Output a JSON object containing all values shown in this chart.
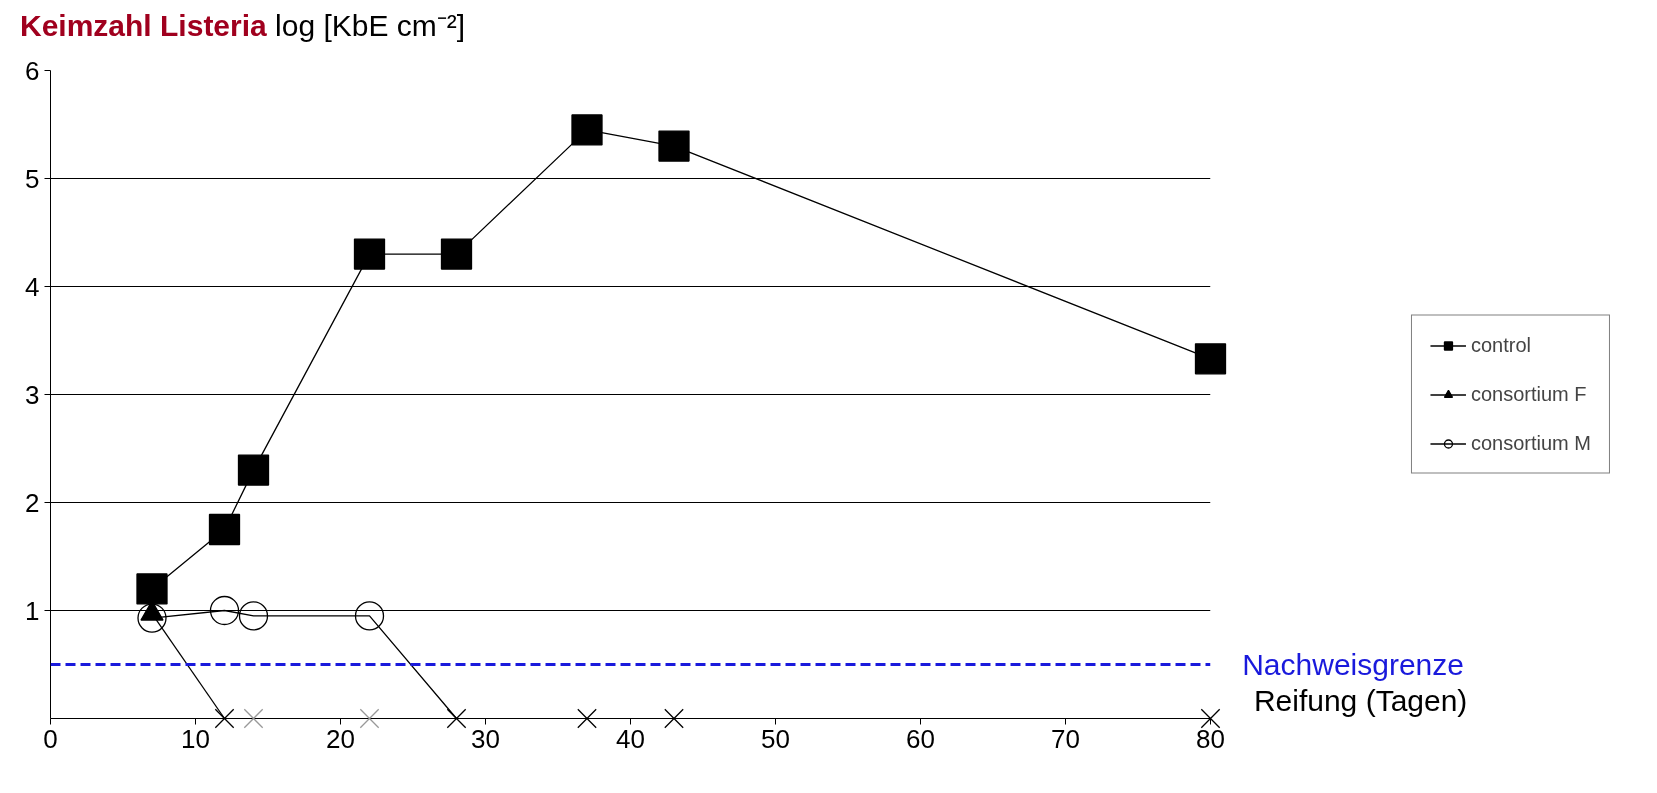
{
  "chart_data": {
    "type": "line",
    "title": "Keimzahl Listeria",
    "ylabel": "log [KbE cm⁻²]",
    "xlabel": "Reifung (Tagen)",
    "xlim": [
      0,
      80
    ],
    "xticks": [
      0,
      10,
      20,
      30,
      40,
      50,
      60,
      70,
      80
    ],
    "ylim": [
      0,
      6
    ],
    "yticks": [
      1,
      2,
      3,
      4,
      5,
      6
    ],
    "grid": "y",
    "legend": "right",
    "ref_lines": [
      {
        "axis": "y",
        "value": 0.5,
        "label": "Nachweisgrenze",
        "color": "#1a1adc",
        "line_style": "dashed"
      }
    ],
    "series": [
      {
        "name": "control",
        "marker": "square",
        "color": "#000000",
        "x": [
          7,
          12,
          14,
          22,
          28,
          37,
          43,
          80
        ],
        "values": [
          1.2,
          1.75,
          2.3,
          4.3,
          4.3,
          5.45,
          5.3,
          3.33
        ]
      },
      {
        "name": "consortium F",
        "type": "scatter",
        "marker": "triangle",
        "color": "#000000",
        "x": [
          7
        ],
        "values": [
          0.97
        ]
      },
      {
        "name": "consortium M",
        "type": "scatter",
        "marker": "circle",
        "color": "#000000",
        "x": [
          7,
          12,
          14,
          22
        ],
        "values": [
          0.93,
          1.0,
          0.95,
          0.95
        ]
      },
      {
        "type": "line",
        "color": "#000000",
        "x": [
          7,
          12
        ],
        "values": [
          0.97,
          0
        ]
      },
      {
        "type": "line",
        "color": "#000000",
        "x": [
          7,
          12,
          14,
          22,
          28
        ],
        "values": [
          0.93,
          1.0,
          0.95,
          0.95,
          0
        ]
      },
      {
        "type": "scatter",
        "marker": "cross",
        "colors": [
          "#000000",
          "#999999",
          "#999999",
          "#000000",
          "#000000",
          "#000000",
          "#000000"
        ],
        "x": [
          12,
          14,
          22,
          28,
          37,
          43,
          80
        ],
        "values": [
          0,
          0,
          0,
          0,
          0,
          0,
          0
        ]
      }
    ]
  }
}
